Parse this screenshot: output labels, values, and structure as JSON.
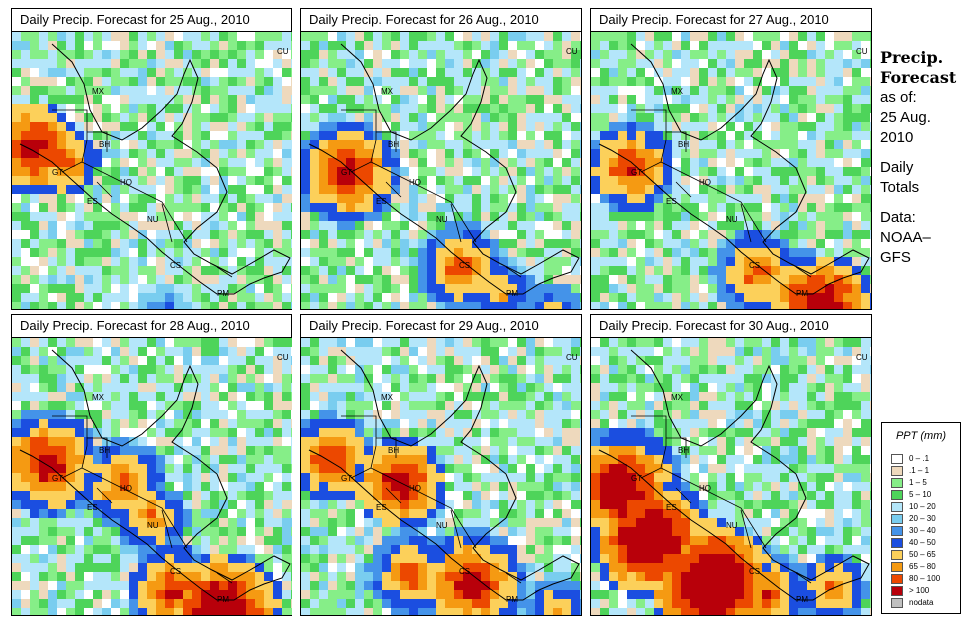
{
  "panels": [
    {
      "title": "Daily Precip. Forecast for  25 Aug., 2010",
      "wet": [
        [
          20,
          115,
          2.5,
          5
        ],
        [
          50,
          128,
          2.0,
          4
        ],
        [
          380,
          140,
          1.5,
          3
        ],
        [
          150,
          280,
          1.0,
          3
        ]
      ]
    },
    {
      "title": "Daily Precip. Forecast for  26 Aug., 2010",
      "wet": [
        [
          45,
          140,
          2.5,
          6
        ],
        [
          160,
          235,
          2.0,
          5
        ],
        [
          200,
          260,
          1.5,
          4
        ],
        [
          250,
          285,
          1.5,
          4
        ]
      ]
    },
    {
      "title": "Daily Precip. Forecast for  27 Aug., 2010",
      "wet": [
        [
          40,
          135,
          2.2,
          5
        ],
        [
          165,
          240,
          2.0,
          5
        ],
        [
          230,
          275,
          2.8,
          6
        ],
        [
          205,
          262,
          2.0,
          5
        ]
      ]
    },
    {
      "title": "Daily Precip. Forecast for  28 Aug., 2010",
      "wet": [
        [
          35,
          125,
          2.5,
          6
        ],
        [
          110,
          145,
          2.0,
          5
        ],
        [
          160,
          252,
          2.2,
          5
        ],
        [
          210,
          275,
          3.0,
          7
        ],
        [
          140,
          180,
          1.8,
          4
        ]
      ]
    },
    {
      "title": "Daily Precip. Forecast for  29 Aug., 2010",
      "wet": [
        [
          30,
          120,
          2.2,
          5
        ],
        [
          100,
          145,
          2.5,
          5
        ],
        [
          170,
          245,
          2.5,
          6
        ],
        [
          110,
          235,
          2.0,
          5
        ],
        [
          255,
          270,
          1.5,
          4
        ]
      ]
    },
    {
      "title": "Daily Precip. Forecast for  30 Aug., 2010",
      "wet": [
        [
          30,
          150,
          2.8,
          7
        ],
        [
          60,
          200,
          3.0,
          7
        ],
        [
          120,
          245,
          3.2,
          7
        ],
        [
          175,
          255,
          2.0,
          5
        ],
        [
          240,
          250,
          1.8,
          4
        ]
      ]
    }
  ],
  "map_labels": {
    "mx": "MX",
    "cu": "CU",
    "bh": "BH",
    "gt": "GT",
    "ho": "HO",
    "es": "ES",
    "nu": "NU",
    "cs": "CS",
    "pm": "PM"
  },
  "side_title": "Precip.\nForecast",
  "side_asof": "as of:\n25 Aug.\n2010",
  "side_totals": "Daily\nTotals",
  "side_data": "Data:\nNOAA–\nGFS",
  "legend": {
    "title": "PPT (mm)",
    "items": [
      {
        "label": "0 – .1",
        "color": "#ffffff"
      },
      {
        "label": ".1 – 1",
        "color": "#eed9bd"
      },
      {
        "label": "1 – 5",
        "color": "#86ee88"
      },
      {
        "label": "5 – 10",
        "color": "#4ed45a"
      },
      {
        "label": "10 – 20",
        "color": "#b4e6fa"
      },
      {
        "label": "20 – 30",
        "color": "#79cdef"
      },
      {
        "label": "30 – 40",
        "color": "#4493e9"
      },
      {
        "label": "40 – 50",
        "color": "#1b4ee0"
      },
      {
        "label": "50 – 65",
        "color": "#fcd05a"
      },
      {
        "label": "65 – 80",
        "color": "#f59a12"
      },
      {
        "label": "80 – 100",
        "color": "#ec4800"
      },
      {
        "label": "> 100",
        "color": "#b8000a"
      },
      {
        "label": "nodata",
        "color": "#c0c0c0"
      }
    ]
  }
}
